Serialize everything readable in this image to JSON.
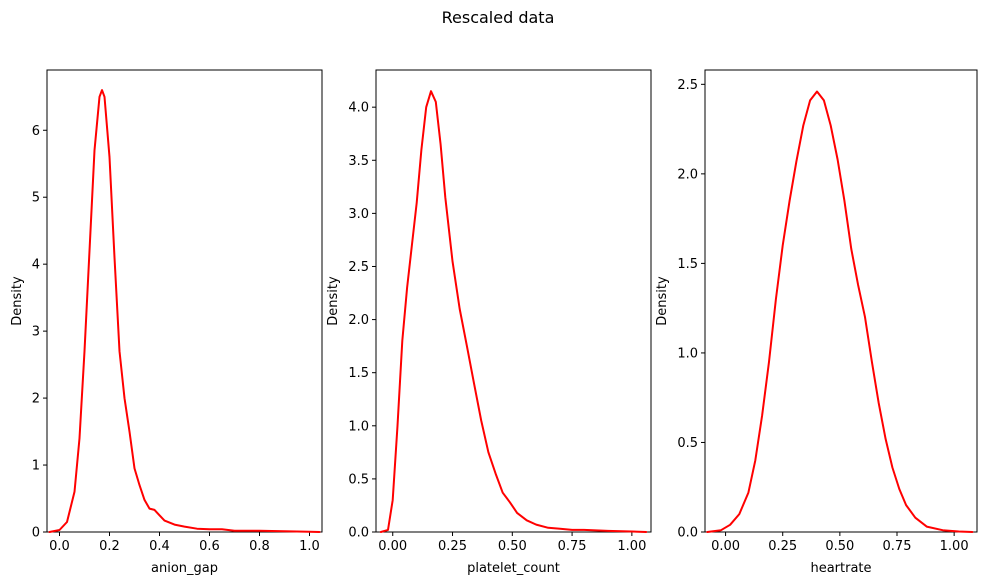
{
  "figure": {
    "suptitle": "Rescaled data"
  },
  "chart_data": [
    {
      "type": "line",
      "xlabel": "anion_gap",
      "ylabel": "Density",
      "xlim": [
        -0.05,
        1.05
      ],
      "ylim": [
        0,
        6.9
      ],
      "xticks": [
        0.0,
        0.2,
        0.4,
        0.6,
        0.8,
        1.0
      ],
      "xtick_labels": [
        "0.0",
        "0.2",
        "0.4",
        "0.6",
        "0.8",
        "1.0"
      ],
      "yticks": [
        0,
        1,
        2,
        3,
        4,
        5,
        6
      ],
      "ytick_labels": [
        "0",
        "1",
        "2",
        "3",
        "4",
        "5",
        "6"
      ],
      "grid": false,
      "series": [
        {
          "color": "#ff0000",
          "points": [
            [
              -0.04,
              0.0
            ],
            [
              0.0,
              0.03
            ],
            [
              0.03,
              0.15
            ],
            [
              0.06,
              0.6
            ],
            [
              0.08,
              1.4
            ],
            [
              0.1,
              2.7
            ],
            [
              0.12,
              4.2
            ],
            [
              0.14,
              5.7
            ],
            [
              0.16,
              6.5
            ],
            [
              0.17,
              6.6
            ],
            [
              0.18,
              6.5
            ],
            [
              0.2,
              5.6
            ],
            [
              0.22,
              4.1
            ],
            [
              0.24,
              2.7
            ],
            [
              0.26,
              2.0
            ],
            [
              0.28,
              1.5
            ],
            [
              0.3,
              0.95
            ],
            [
              0.32,
              0.7
            ],
            [
              0.34,
              0.48
            ],
            [
              0.36,
              0.35
            ],
            [
              0.38,
              0.33
            ],
            [
              0.4,
              0.25
            ],
            [
              0.42,
              0.17
            ],
            [
              0.46,
              0.11
            ],
            [
              0.5,
              0.08
            ],
            [
              0.55,
              0.05
            ],
            [
              0.6,
              0.04
            ],
            [
              0.65,
              0.04
            ],
            [
              0.7,
              0.02
            ],
            [
              0.8,
              0.02
            ],
            [
              0.9,
              0.01
            ],
            [
              1.0,
              0.005
            ],
            [
              1.04,
              0.0
            ]
          ]
        }
      ]
    },
    {
      "type": "line",
      "xlabel": "platelet_count",
      "ylabel": "Density",
      "xlim": [
        -0.07,
        1.08
      ],
      "ylim": [
        0,
        4.35
      ],
      "xticks": [
        0.0,
        0.25,
        0.5,
        0.75,
        1.0
      ],
      "xtick_labels": [
        "0.00",
        "0.25",
        "0.50",
        "0.75",
        "1.00"
      ],
      "yticks": [
        0.0,
        0.5,
        1.0,
        1.5,
        2.0,
        2.5,
        3.0,
        3.5,
        4.0
      ],
      "ytick_labels": [
        "0.0",
        "0.5",
        "1.0",
        "1.5",
        "2.0",
        "2.5",
        "3.0",
        "3.5",
        "4.0"
      ],
      "grid": false,
      "series": [
        {
          "color": "#ff0000",
          "points": [
            [
              -0.05,
              0.0
            ],
            [
              -0.02,
              0.02
            ],
            [
              0.0,
              0.3
            ],
            [
              0.02,
              1.0
            ],
            [
              0.04,
              1.8
            ],
            [
              0.06,
              2.3
            ],
            [
              0.08,
              2.7
            ],
            [
              0.1,
              3.1
            ],
            [
              0.12,
              3.6
            ],
            [
              0.14,
              4.0
            ],
            [
              0.16,
              4.15
            ],
            [
              0.18,
              4.05
            ],
            [
              0.2,
              3.65
            ],
            [
              0.22,
              3.15
            ],
            [
              0.25,
              2.55
            ],
            [
              0.28,
              2.1
            ],
            [
              0.31,
              1.75
            ],
            [
              0.34,
              1.4
            ],
            [
              0.37,
              1.05
            ],
            [
              0.4,
              0.75
            ],
            [
              0.43,
              0.55
            ],
            [
              0.46,
              0.37
            ],
            [
              0.49,
              0.28
            ],
            [
              0.52,
              0.18
            ],
            [
              0.56,
              0.11
            ],
            [
              0.6,
              0.07
            ],
            [
              0.65,
              0.04
            ],
            [
              0.7,
              0.03
            ],
            [
              0.75,
              0.02
            ],
            [
              0.8,
              0.02
            ],
            [
              0.9,
              0.01
            ],
            [
              1.0,
              0.005
            ],
            [
              1.06,
              0.0
            ]
          ]
        }
      ]
    },
    {
      "type": "line",
      "xlabel": "heartrate",
      "ylabel": "Density",
      "xlim": [
        -0.09,
        1.1
      ],
      "ylim": [
        0,
        2.58
      ],
      "xticks": [
        0.0,
        0.25,
        0.5,
        0.75,
        1.0
      ],
      "xtick_labels": [
        "0.00",
        "0.25",
        "0.50",
        "0.75",
        "1.00"
      ],
      "yticks": [
        0.0,
        0.5,
        1.0,
        1.5,
        2.0,
        2.5
      ],
      "ytick_labels": [
        "0.0",
        "0.5",
        "1.0",
        "1.5",
        "2.0",
        "2.5"
      ],
      "grid": false,
      "series": [
        {
          "color": "#ff0000",
          "points": [
            [
              -0.08,
              0.0
            ],
            [
              -0.02,
              0.01
            ],
            [
              0.02,
              0.04
            ],
            [
              0.06,
              0.1
            ],
            [
              0.1,
              0.22
            ],
            [
              0.13,
              0.4
            ],
            [
              0.16,
              0.65
            ],
            [
              0.19,
              0.95
            ],
            [
              0.22,
              1.3
            ],
            [
              0.25,
              1.6
            ],
            [
              0.28,
              1.85
            ],
            [
              0.31,
              2.07
            ],
            [
              0.34,
              2.27
            ],
            [
              0.37,
              2.41
            ],
            [
              0.4,
              2.46
            ],
            [
              0.43,
              2.41
            ],
            [
              0.46,
              2.27
            ],
            [
              0.49,
              2.08
            ],
            [
              0.52,
              1.85
            ],
            [
              0.55,
              1.58
            ],
            [
              0.58,
              1.38
            ],
            [
              0.61,
              1.2
            ],
            [
              0.64,
              0.95
            ],
            [
              0.67,
              0.72
            ],
            [
              0.7,
              0.52
            ],
            [
              0.73,
              0.36
            ],
            [
              0.76,
              0.24
            ],
            [
              0.79,
              0.15
            ],
            [
              0.83,
              0.08
            ],
            [
              0.88,
              0.03
            ],
            [
              0.95,
              0.01
            ],
            [
              1.02,
              0.003
            ],
            [
              1.08,
              0.0
            ]
          ]
        }
      ]
    }
  ]
}
